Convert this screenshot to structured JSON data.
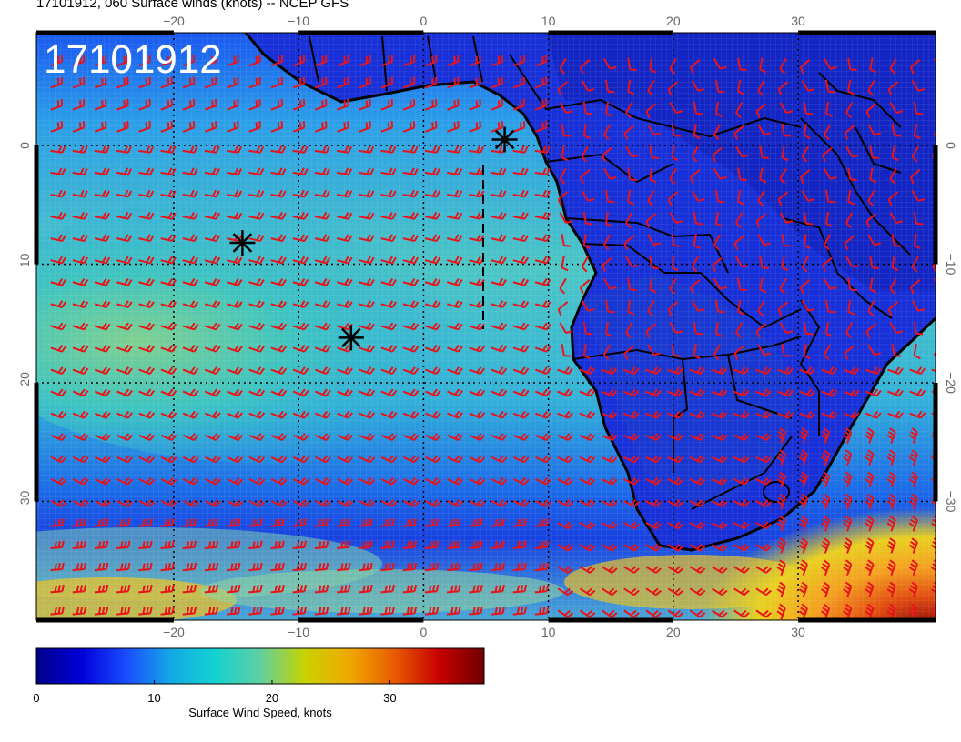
{
  "header": {
    "title": "17101912, 060 Surface winds (knots) -- NCEP GFS"
  },
  "map": {
    "stamp": "17101912",
    "lon_range": [
      -31,
      41
    ],
    "lat_range": [
      -40,
      9.5
    ],
    "grid_lon": [
      -20,
      -10,
      0,
      10,
      20,
      30
    ],
    "grid_lat": [
      0,
      -10,
      -20,
      -30
    ],
    "top_lon_labels": [
      "−20",
      "−10",
      "0",
      "10",
      "20",
      "30"
    ],
    "bottom_lon_labels": [
      "−20",
      "−10",
      "0",
      "10",
      "20",
      "30"
    ],
    "left_lat_labels": [
      "0",
      "−10",
      "−20",
      "−30"
    ],
    "right_lat_labels": [
      "0",
      "−10",
      "−20",
      "−30"
    ],
    "barb_color": "#e8141a",
    "coast_color": "#000000",
    "markers": [
      {
        "name": "storm-marker-gulf-of-guinea",
        "lon": 6.5,
        "lat": 0.5
      },
      {
        "name": "storm-marker-west",
        "lon": -14.5,
        "lat": -8.2
      },
      {
        "name": "storm-marker-center",
        "lon": -5.8,
        "lat": -16.2
      }
    ]
  },
  "colorbar": {
    "label": "Surface Wind Speed, knots",
    "min": 0,
    "max": 38,
    "ticks": [
      {
        "value": 0,
        "label": "0"
      },
      {
        "value": 10,
        "label": "10"
      },
      {
        "value": 20,
        "label": "20"
      },
      {
        "value": 30,
        "label": "30"
      }
    ],
    "colors": [
      "#00008a",
      "#0000d8",
      "#1a4cff",
      "#14a8e6",
      "#14d2d2",
      "#5fd0a0",
      "#c8d200",
      "#f0a800",
      "#e85a00",
      "#c80000",
      "#6e0000"
    ]
  }
}
